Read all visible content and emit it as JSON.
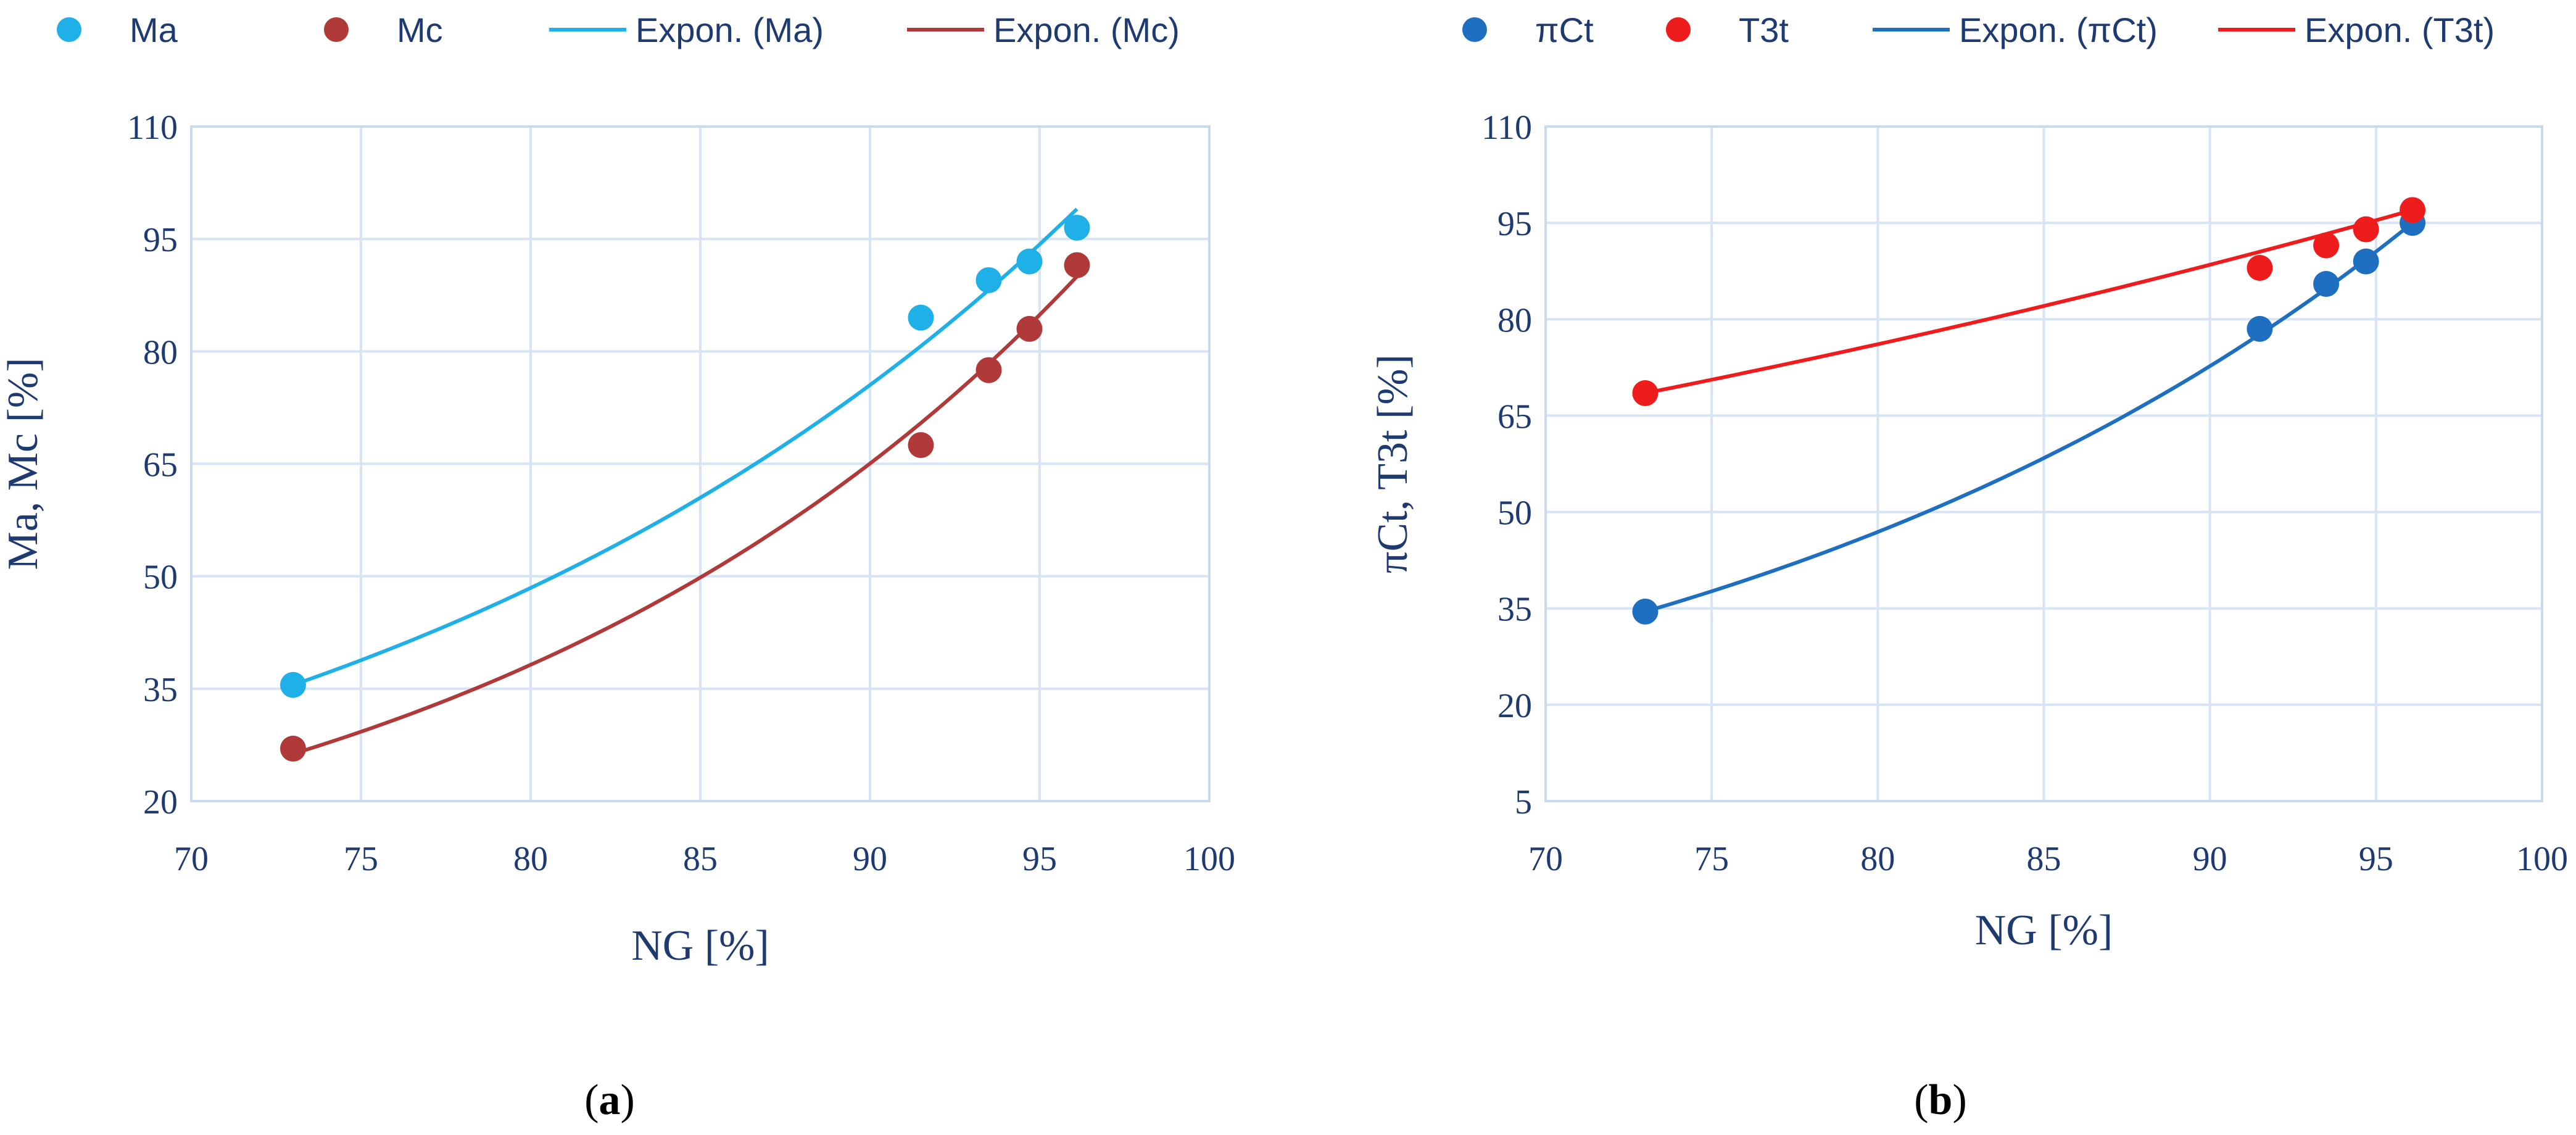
{
  "chart_data": [
    {
      "type": "scatter",
      "panel_label": "a",
      "xlabel": "NG [%]",
      "ylabel": "Ma, Mc [%]",
      "xlim": [
        70,
        100
      ],
      "ylim": [
        20,
        110
      ],
      "xticks": [
        70,
        75,
        80,
        85,
        90,
        95,
        100
      ],
      "yticks": [
        20,
        35,
        50,
        65,
        80,
        95,
        110
      ],
      "grid": true,
      "legend_position": "top",
      "series": [
        {
          "name": "Ma",
          "kind": "points",
          "color": "#20b0e8",
          "x": [
            73,
            91.5,
            93.5,
            94.7,
            96.1
          ],
          "y": [
            35.5,
            84.5,
            89.5,
            92,
            96.5
          ]
        },
        {
          "name": "Mc",
          "kind": "points",
          "color": "#b03a3a",
          "x": [
            73,
            91.5,
            93.5,
            94.7,
            96.1
          ],
          "y": [
            27,
            67.5,
            77.5,
            83,
            91.5
          ]
        },
        {
          "name": "Expon. (Ma)",
          "kind": "trend",
          "color": "#20b0e8",
          "x": [
            73,
            96.1
          ],
          "y": [
            35.5,
            99
          ]
        },
        {
          "name": "Expon. (Mc)",
          "kind": "trend",
          "color": "#b03a3a",
          "x": [
            73,
            96.1
          ],
          "y": [
            26.3,
            90
          ]
        }
      ]
    },
    {
      "type": "scatter",
      "panel_label": "b",
      "xlabel": "NG [%]",
      "ylabel": "πCt, T3t [%]",
      "xlim": [
        70,
        100
      ],
      "ylim": [
        5,
        110
      ],
      "xticks": [
        70,
        75,
        80,
        85,
        90,
        95,
        100
      ],
      "yticks": [
        5,
        20,
        35,
        50,
        65,
        80,
        95,
        110
      ],
      "grid": true,
      "legend_position": "top",
      "series": [
        {
          "name": "πCt",
          "kind": "points",
          "color": "#1e6fc0",
          "x": [
            73,
            91.5,
            93.5,
            94.7,
            96.1
          ],
          "y": [
            34.5,
            78.5,
            85.5,
            89,
            95
          ]
        },
        {
          "name": "T3t",
          "kind": "points",
          "color": "#ee1c1c",
          "x": [
            73,
            91.5,
            93.5,
            94.7,
            96.1
          ],
          "y": [
            68.5,
            88,
            91.5,
            94,
            97
          ]
        },
        {
          "name": "Expon. (πCt)",
          "kind": "trend",
          "color": "#1e6fc0",
          "x": [
            73,
            96.1
          ],
          "y": [
            34.5,
            95
          ]
        },
        {
          "name": "Expon. (T3t)",
          "kind": "trend",
          "color": "#ee1c1c",
          "x": [
            73,
            96.1
          ],
          "y": [
            68.5,
            97
          ]
        }
      ]
    }
  ]
}
